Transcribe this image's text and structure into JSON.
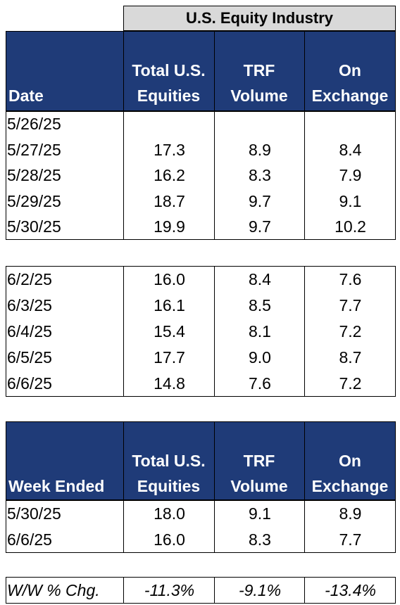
{
  "super_header": "U.S. Equity Industry",
  "header": {
    "date_label": "Date",
    "col1_line1": "Total U.S.",
    "col1_line2": "Equities",
    "col2_line1": "TRF",
    "col2_line2": "Volume",
    "col3_line1": "On",
    "col3_line2": "Exchange"
  },
  "week1": [
    {
      "date": "5/26/25",
      "total": "",
      "trf": "",
      "on": ""
    },
    {
      "date": "5/27/25",
      "total": "17.3",
      "trf": "8.9",
      "on": "8.4"
    },
    {
      "date": "5/28/25",
      "total": "16.2",
      "trf": "8.3",
      "on": "7.9"
    },
    {
      "date": "5/29/25",
      "total": "18.7",
      "trf": "9.7",
      "on": "9.1"
    },
    {
      "date": "5/30/25",
      "total": "19.9",
      "trf": "9.7",
      "on": "10.2"
    }
  ],
  "week2": [
    {
      "date": "6/2/25",
      "total": "16.0",
      "trf": "8.4",
      "on": "7.6"
    },
    {
      "date": "6/3/25",
      "total": "16.1",
      "trf": "8.5",
      "on": "7.7"
    },
    {
      "date": "6/4/25",
      "total": "15.4",
      "trf": "8.1",
      "on": "7.2"
    },
    {
      "date": "6/5/25",
      "total": "17.7",
      "trf": "9.0",
      "on": "8.7"
    },
    {
      "date": "6/6/25",
      "total": "14.8",
      "trf": "7.6",
      "on": "7.2"
    }
  ],
  "summary_header": {
    "week_label": "Week Ended",
    "col1_line1": "Total U.S.",
    "col1_line2": "Equities",
    "col2_line1": "TRF",
    "col2_line2": "Volume",
    "col3_line1": "On",
    "col3_line2": "Exchange"
  },
  "summary": [
    {
      "date": "5/30/25",
      "total": "18.0",
      "trf": "9.1",
      "on": "8.9"
    },
    {
      "date": "6/6/25",
      "total": "16.0",
      "trf": "8.3",
      "on": "7.7"
    }
  ],
  "change": {
    "label": "W/W % Chg.",
    "total": "-11.3%",
    "trf": "-9.1%",
    "on": "-13.4%"
  }
}
